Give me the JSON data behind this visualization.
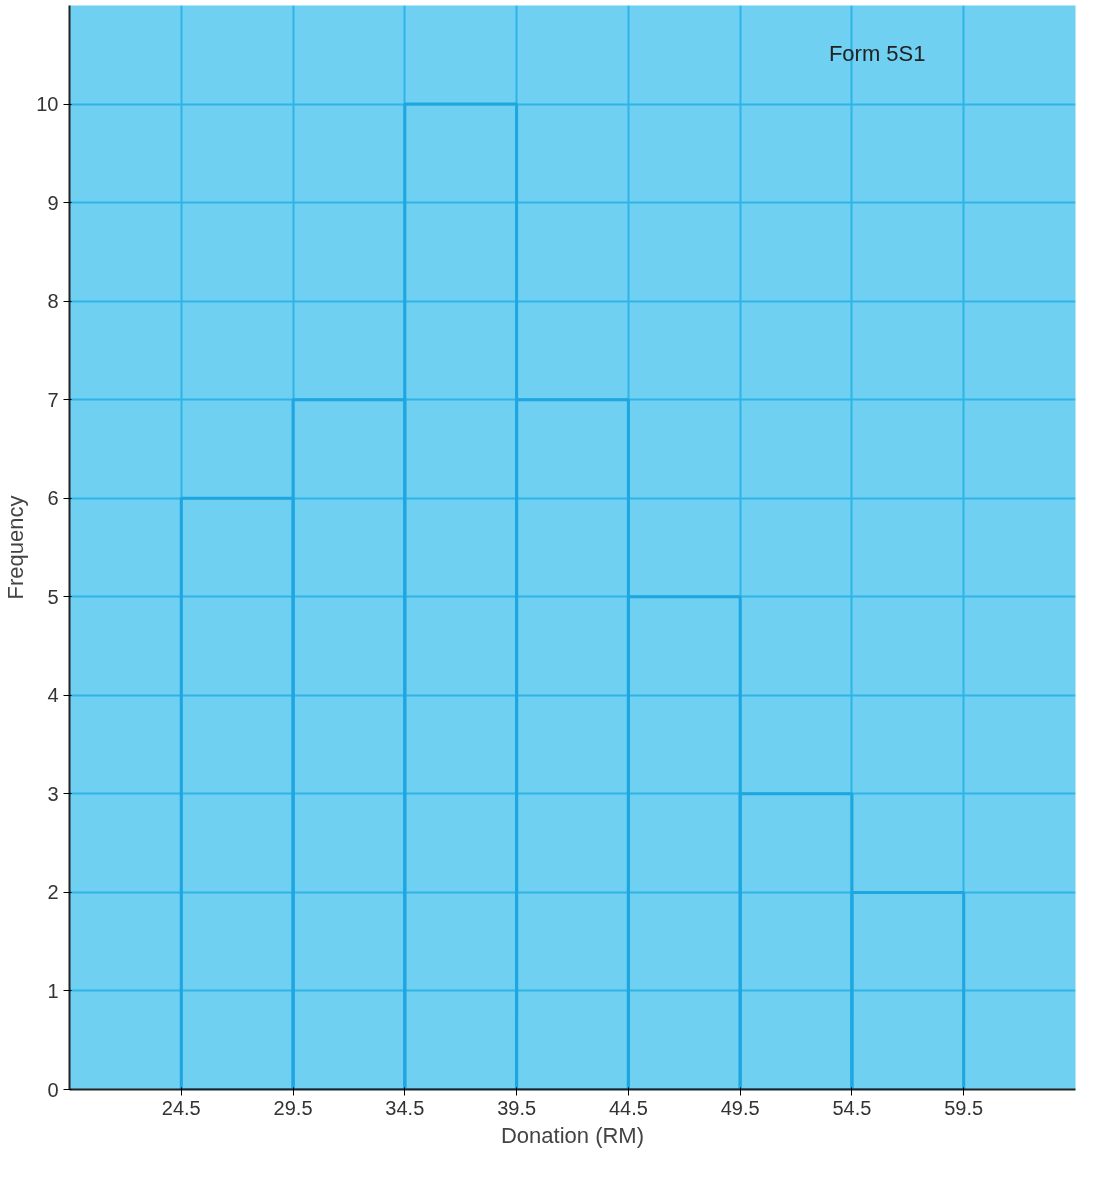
{
  "chart_data": {
    "type": "histogram",
    "title": "Form 5S1",
    "xlabel": "Donation (RM)",
    "ylabel": "Frequency",
    "bins": [
      24.5,
      29.5,
      34.5,
      39.5,
      44.5,
      49.5,
      54.5,
      59.5
    ],
    "values": [
      6,
      7,
      10,
      7,
      5,
      3,
      2
    ],
    "color": "#1ea6e0",
    "xlim": [
      19.5,
      64.5
    ],
    "ylim": [
      0,
      11
    ],
    "xticks": [
      24.5,
      29.5,
      34.5,
      39.5,
      44.5,
      49.5,
      54.5,
      59.5
    ],
    "yticks": [
      0,
      1,
      2,
      3,
      4,
      5,
      6,
      7,
      8,
      9,
      10
    ],
    "grid": true
  }
}
